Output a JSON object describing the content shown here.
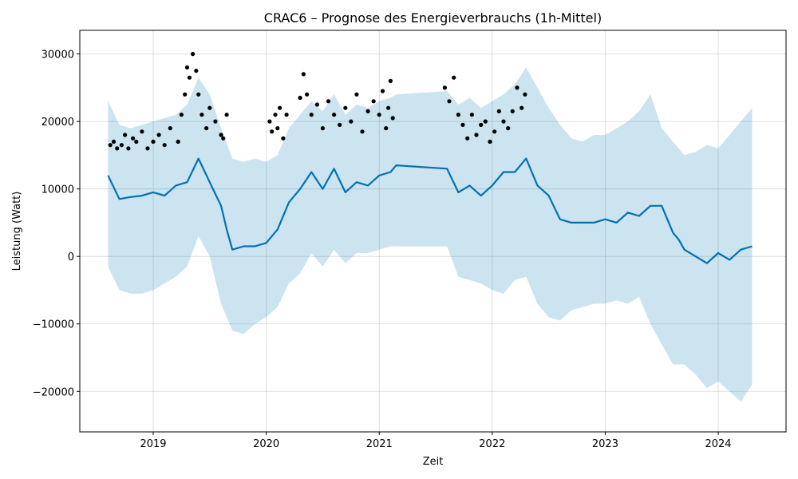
{
  "chart_data": {
    "type": "line",
    "title": "CRAC6 – Prognose des Energieverbrauchs (1h-Mittel)",
    "xlabel": "Zeit",
    "ylabel": "Leistung (Watt)",
    "xlim": [
      2018.35,
      2024.6
    ],
    "ylim": [
      -26000,
      33500
    ],
    "x_ticks": [
      2019,
      2020,
      2021,
      2022,
      2023,
      2024
    ],
    "x_tick_labels": [
      "2019",
      "2020",
      "2021",
      "2022",
      "2023",
      "2024"
    ],
    "y_ticks": [
      -20000,
      -10000,
      0,
      10000,
      20000,
      30000
    ],
    "y_tick_labels": [
      "−20000",
      "−10000",
      "0",
      "10000",
      "20000",
      "30000"
    ],
    "grid": true,
    "colors": {
      "forecast_line": "#0072B2",
      "interval_fill": "#0072B2",
      "observed_points": "#000000"
    },
    "series": [
      {
        "role": "forecast",
        "x": [
          2018.6,
          2018.7,
          2018.8,
          2018.9,
          2019.0,
          2019.1,
          2019.2,
          2019.3,
          2019.4,
          2019.5,
          2019.6,
          2019.65,
          2019.7,
          2019.8,
          2019.9,
          2020.0,
          2020.1,
          2020.2,
          2020.3,
          2020.4,
          2020.5,
          2020.6,
          2020.7,
          2020.8,
          2020.9,
          2021.0,
          2021.1,
          2021.15,
          2021.6,
          2021.7,
          2021.8,
          2021.9,
          2022.0,
          2022.1,
          2022.2,
          2022.3,
          2022.4,
          2022.5,
          2022.6,
          2022.7,
          2022.8,
          2022.9,
          2023.0,
          2023.1,
          2023.2,
          2023.3,
          2023.4,
          2023.5,
          2023.6,
          2023.65,
          2023.7,
          2023.8,
          2023.9,
          2024.0,
          2024.1,
          2024.2,
          2024.3
        ],
        "y": [
          12000,
          8500,
          8800,
          9000,
          9500,
          9000,
          10500,
          11000,
          14500,
          11000,
          7500,
          4000,
          1000,
          1500,
          1500,
          2000,
          4000,
          8000,
          10000,
          12500,
          10000,
          13000,
          9500,
          11000,
          10500,
          12000,
          12500,
          13500,
          13000,
          9500,
          10500,
          9000,
          10500,
          12500,
          12500,
          14500,
          10500,
          9000,
          5500,
          5000,
          5000,
          5000,
          5500,
          5000,
          6500,
          6000,
          7500,
          7500,
          3500,
          2500,
          1000,
          0,
          -1000,
          500,
          -500,
          1000,
          1500
        ]
      },
      {
        "role": "interval_upper",
        "x": [
          2018.6,
          2018.7,
          2018.8,
          2018.9,
          2019.0,
          2019.1,
          2019.2,
          2019.3,
          2019.4,
          2019.5,
          2019.6,
          2019.7,
          2019.8,
          2019.9,
          2020.0,
          2020.1,
          2020.2,
          2020.3,
          2020.4,
          2020.5,
          2020.6,
          2020.7,
          2020.8,
          2020.9,
          2021.0,
          2021.1,
          2021.15,
          2021.6,
          2021.7,
          2021.8,
          2021.9,
          2022.0,
          2022.1,
          2022.2,
          2022.3,
          2022.4,
          2022.5,
          2022.6,
          2022.7,
          2022.8,
          2022.9,
          2023.0,
          2023.1,
          2023.2,
          2023.3,
          2023.4,
          2023.5,
          2023.6,
          2023.7,
          2023.8,
          2023.9,
          2024.0,
          2024.1,
          2024.2,
          2024.3
        ],
        "y": [
          23000,
          19500,
          19000,
          19500,
          20000,
          20500,
          21000,
          22500,
          26500,
          24000,
          19000,
          14500,
          14000,
          14500,
          14000,
          15000,
          19000,
          21000,
          23000,
          21500,
          24000,
          21000,
          22500,
          22000,
          23000,
          23500,
          24000,
          24500,
          22500,
          23500,
          22000,
          23000,
          24000,
          25500,
          28000,
          25000,
          22000,
          19500,
          17500,
          17000,
          18000,
          18000,
          19000,
          20000,
          21500,
          24000,
          19000,
          17000,
          15000,
          15500,
          16500,
          16000,
          18000,
          20000,
          22000
        ]
      },
      {
        "role": "interval_lower",
        "x": [
          2018.6,
          2018.7,
          2018.8,
          2018.9,
          2019.0,
          2019.1,
          2019.2,
          2019.3,
          2019.4,
          2019.5,
          2019.6,
          2019.7,
          2019.8,
          2019.9,
          2020.0,
          2020.1,
          2020.2,
          2020.3,
          2020.4,
          2020.5,
          2020.6,
          2020.7,
          2020.8,
          2020.9,
          2021.0,
          2021.1,
          2021.15,
          2021.6,
          2021.7,
          2021.8,
          2021.9,
          2022.0,
          2022.1,
          2022.2,
          2022.3,
          2022.4,
          2022.5,
          2022.6,
          2022.7,
          2022.8,
          2022.9,
          2023.0,
          2023.1,
          2023.2,
          2023.3,
          2023.4,
          2023.5,
          2023.6,
          2023.7,
          2023.8,
          2023.9,
          2024.0,
          2024.1,
          2024.2,
          2024.3
        ],
        "y": [
          -1500,
          -5000,
          -5500,
          -5500,
          -5000,
          -4000,
          -3000,
          -1500,
          3000,
          0,
          -7000,
          -11000,
          -11500,
          -10000,
          -9000,
          -7500,
          -4000,
          -2500,
          500,
          -1500,
          1000,
          -1000,
          500,
          500,
          1000,
          1500,
          1500,
          1500,
          -3000,
          -3500,
          -4000,
          -5000,
          -5500,
          -3500,
          -3000,
          -7000,
          -9000,
          -9500,
          -8000,
          -7500,
          -7000,
          -7000,
          -6500,
          -7000,
          -6000,
          -10000,
          -13000,
          -16000,
          -16000,
          -17500,
          -19500,
          -18500,
          -20000,
          -21500,
          -19000
        ]
      },
      {
        "role": "observed",
        "name": "",
        "x": [
          2018.62,
          2018.65,
          2018.68,
          2018.72,
          2018.75,
          2018.78,
          2018.82,
          2018.85,
          2018.9,
          2018.95,
          2019.0,
          2019.05,
          2019.1,
          2019.15,
          2019.22,
          2019.25,
          2019.28,
          2019.3,
          2019.32,
          2019.35,
          2019.38,
          2019.4,
          2019.43,
          2019.47,
          2019.5,
          2019.55,
          2019.6,
          2019.62,
          2019.65,
          2020.03,
          2020.05,
          2020.08,
          2020.1,
          2020.12,
          2020.15,
          2020.18,
          2020.3,
          2020.33,
          2020.36,
          2020.4,
          2020.45,
          2020.5,
          2020.55,
          2020.6,
          2020.65,
          2020.7,
          2020.75,
          2020.8,
          2020.85,
          2020.9,
          2020.95,
          2021.0,
          2021.03,
          2021.06,
          2021.08,
          2021.1,
          2021.12,
          2021.58,
          2021.62,
          2021.66,
          2021.7,
          2021.74,
          2021.78,
          2021.82,
          2021.86,
          2021.9,
          2021.94,
          2021.98,
          2022.02,
          2022.06,
          2022.1,
          2022.14,
          2022.18,
          2022.22,
          2022.26,
          2022.29
        ],
        "y": [
          16500,
          17000,
          16000,
          16500,
          18000,
          16000,
          17500,
          17000,
          18500,
          16000,
          17000,
          18000,
          16500,
          19000,
          17000,
          21000,
          24000,
          28000,
          26500,
          30000,
          27500,
          24000,
          21000,
          19000,
          22000,
          20000,
          18000,
          17500,
          21000,
          20000,
          18500,
          21000,
          19000,
          22000,
          17500,
          21000,
          23500,
          27000,
          24000,
          21000,
          22500,
          19000,
          23000,
          21000,
          19500,
          22000,
          20000,
          24000,
          18500,
          21500,
          23000,
          21000,
          24500,
          19000,
          22000,
          26000,
          20500,
          25000,
          23000,
          26500,
          21000,
          19500,
          17500,
          21000,
          18000,
          19500,
          20000,
          17000,
          18500,
          21500,
          20000,
          19000,
          21500,
          25000,
          22000,
          24000
        ]
      }
    ]
  }
}
